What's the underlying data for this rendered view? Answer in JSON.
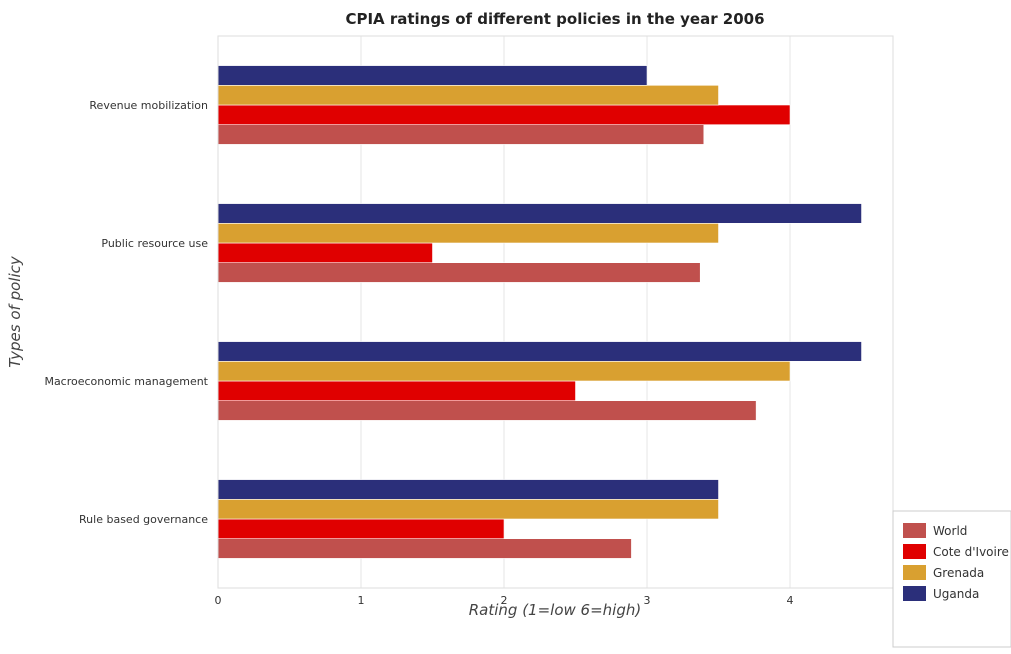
{
  "chart_data": {
    "type": "bar",
    "orientation": "horizontal",
    "title": "CPIA ratings of different policies in the year 2006",
    "xlabel": "Rating (1=low 6=high)",
    "ylabel": "Types of policy",
    "xlim": [
      0,
      4.72
    ],
    "xticks": [
      0,
      1,
      2,
      3,
      4
    ],
    "grid": true,
    "legend_position": "bottom-right",
    "categories": [
      "Revenue mobilization",
      "Public resource use",
      "Macroeconomic management",
      "Rule based governance"
    ],
    "series": [
      {
        "name": "World",
        "color": "#c0504d",
        "values": [
          3.397,
          3.372,
          3.763,
          2.891
        ]
      },
      {
        "name": "Cote d'Ivoire",
        "color": "#e00000",
        "values": [
          4.0,
          1.5,
          2.5,
          2.0
        ]
      },
      {
        "name": "Grenada",
        "color": "#d9a030",
        "values": [
          3.5,
          3.5,
          4.0,
          3.5
        ]
      },
      {
        "name": "Uganda",
        "color": "#2b2f7a",
        "values": [
          3.0,
          4.5,
          4.5,
          3.5
        ]
      }
    ]
  }
}
